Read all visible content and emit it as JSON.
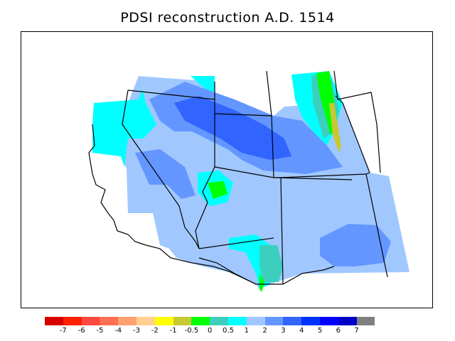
{
  "title": "PDSI reconstruction A.D. 1514",
  "legend": {
    "colors": [
      "#d70000",
      "#ff2000",
      "#ff4840",
      "#ff7050",
      "#ffa070",
      "#ffd090",
      "#ffff00",
      "#c8c832",
      "#00ff00",
      "#3ccfbe",
      "#00ffff",
      "#a0c8ff",
      "#6496ff",
      "#3264ff",
      "#0032ff",
      "#0000ff",
      "#0000c8",
      "#808080"
    ],
    "tick_labels": [
      "-7",
      "-6",
      "-5",
      "-4",
      "-3",
      "-2",
      "-1",
      "-0.5",
      "0",
      "0.5",
      "1",
      "2",
      "3",
      "4",
      "5",
      "6",
      "7"
    ]
  },
  "palette": {
    "light_blue": "#a0c8ff",
    "mid_blue": "#6496ff",
    "strong_blue": "#3264ff",
    "cyan": "#00ffff",
    "teal": "#3ccfbe",
    "green": "#00ff00",
    "olive": "#c8c832"
  }
}
